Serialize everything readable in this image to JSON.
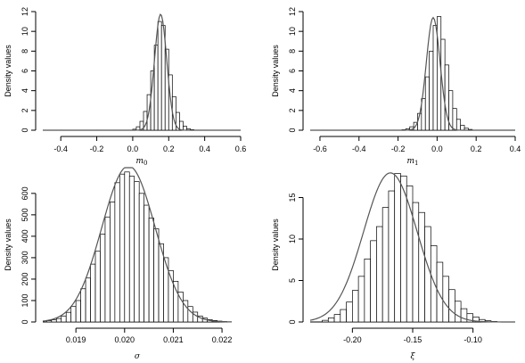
{
  "chart_data": [
    {
      "type": "histogram",
      "panel": "top-left",
      "ylabel": "Density values",
      "xlabel_main": "m",
      "xlabel_sub": "0",
      "xlim": [
        -0.5,
        0.6
      ],
      "ylim": [
        0,
        12
      ],
      "x_ticks": [
        -0.4,
        -0.2,
        0.0,
        0.2,
        0.4,
        0.6
      ],
      "x_tick_labels": [
        "-0.4",
        "-0.2",
        "0.0",
        "0.2",
        "0.4",
        "0.6"
      ],
      "y_ticks": [
        0,
        2,
        4,
        6,
        8,
        10,
        12
      ],
      "y_tick_labels": [
        "0",
        "2",
        "4",
        "6",
        "8",
        "10",
        "12"
      ],
      "curve": "normal",
      "mean": 0.155,
      "sd": 0.034,
      "bin_width": 0.02,
      "bins_start": 0.0,
      "densities": [
        0.1,
        0.35,
        0.9,
        1.9,
        3.6,
        6.0,
        8.6,
        11.0,
        10.6,
        8.2,
        5.6,
        3.4,
        1.8,
        0.9,
        0.4,
        0.15,
        0.06
      ]
    },
    {
      "type": "histogram",
      "panel": "top-right",
      "ylabel": "Density values",
      "xlabel_main": "m",
      "xlabel_sub": "1",
      "xlim": [
        -0.65,
        0.4
      ],
      "ylim": [
        0,
        12
      ],
      "x_ticks": [
        -0.6,
        -0.4,
        -0.2,
        0.0,
        0.2,
        0.4
      ],
      "x_tick_labels": [
        "-0.6",
        "-0.4",
        "-0.2",
        "0.0",
        "0.2",
        "0.4"
      ],
      "y_ticks": [
        0,
        2,
        4,
        6,
        8,
        10,
        12
      ],
      "y_tick_labels": [
        "0",
        "2",
        "4",
        "6",
        "8",
        "10",
        "12"
      ],
      "curve": "normal",
      "mean": -0.02,
      "sd": 0.035,
      "bin_width": 0.02,
      "bins_start": -0.18,
      "densities": [
        0.05,
        0.15,
        0.35,
        0.8,
        1.7,
        3.2,
        5.4,
        8.0,
        10.6,
        11.5,
        9.2,
        6.6,
        4.0,
        2.2,
        1.1,
        0.5,
        0.2,
        0.08
      ]
    },
    {
      "type": "histogram",
      "panel": "bottom-left",
      "ylabel": "Density values",
      "xlabel_main": "σ",
      "xlabel_sub": "",
      "xlim": [
        0.01832,
        0.0222
      ],
      "ylim": [
        0,
        720
      ],
      "x_ticks": [
        0.019,
        0.02,
        0.021,
        0.022
      ],
      "x_tick_labels": [
        "0.019",
        "0.020",
        "0.021",
        "0.022"
      ],
      "y_ticks": [
        0,
        100,
        200,
        300,
        400,
        500,
        600
      ],
      "y_tick_labels": [
        "0",
        "100",
        "200",
        "300",
        "400",
        "500",
        "600"
      ],
      "curve": "normal",
      "mean": 0.02008,
      "sd": 0.000548,
      "bin_width": 0.0001,
      "bins_start": 0.0184,
      "densities": [
        6,
        10,
        16,
        28,
        45,
        72,
        100,
        155,
        205,
        270,
        330,
        410,
        490,
        560,
        650,
        690,
        700,
        680,
        655,
        600,
        545,
        485,
        435,
        365,
        300,
        240,
        190,
        140,
        100,
        72,
        46,
        28,
        18,
        11,
        7,
        4,
        2
      ]
    },
    {
      "type": "histogram",
      "panel": "bottom-right",
      "ylabel": "Density values",
      "xlabel_main": "ξ",
      "xlabel_sub": "",
      "xlim": [
        -0.235,
        -0.065
      ],
      "ylim": [
        0,
        18.6
      ],
      "x_ticks": [
        -0.2,
        -0.15,
        -0.1
      ],
      "x_tick_labels": [
        "-0.20",
        "-0.15",
        "-0.10"
      ],
      "y_ticks": [
        0,
        5,
        10,
        15
      ],
      "y_tick_labels": [
        "0",
        "5",
        "10",
        "15"
      ],
      "curve": "normal",
      "mean": -0.1685,
      "sd": 0.0222,
      "bin_width": 0.005,
      "bins_start": -0.225,
      "densities": [
        0.2,
        0.5,
        0.9,
        1.5,
        2.4,
        3.8,
        5.5,
        7.6,
        9.8,
        11.5,
        13.8,
        15.8,
        17.9,
        17.6,
        16.4,
        14.4,
        13.2,
        11.5,
        9.2,
        7.2,
        5.5,
        3.9,
        2.5,
        1.6,
        1.0,
        0.6,
        0.3,
        0.15,
        0.06
      ]
    }
  ]
}
